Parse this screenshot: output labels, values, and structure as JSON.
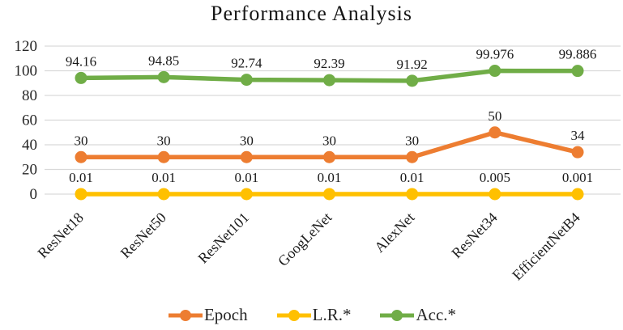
{
  "title": "Performance Analysis",
  "chart_data": {
    "type": "line",
    "title": "Performance Analysis",
    "categories": [
      "ResNet18",
      "ResNet50",
      "ResNet101",
      "GoogLeNet",
      "AlexNet",
      "ResNet34",
      "EfficientNetB4"
    ],
    "series": [
      {
        "name": "Epoch",
        "color": "#ED7D31",
        "values": [
          30,
          30,
          30,
          30,
          30,
          50,
          34
        ],
        "labels": [
          "30",
          "30",
          "30",
          "30",
          "30",
          "50",
          "34"
        ]
      },
      {
        "name": "L.R.*",
        "color": "#FFC000",
        "values": [
          0.01,
          0.01,
          0.01,
          0.01,
          0.01,
          0.005,
          0.001
        ],
        "labels": [
          "0.01",
          "0.01",
          "0.01",
          "0.01",
          "0.01",
          "0.005",
          "0.001"
        ]
      },
      {
        "name": "Acc.*",
        "color": "#70AD47",
        "values": [
          94.16,
          94.85,
          92.74,
          92.39,
          91.92,
          99.976,
          99.886
        ],
        "labels": [
          "94.16",
          "94.85",
          "92.74",
          "92.39",
          "91.92",
          "99.976",
          "99.886"
        ]
      }
    ],
    "ylim": [
      0,
      120
    ],
    "yticks": [
      0,
      20,
      40,
      60,
      80,
      100,
      120
    ],
    "grid": true,
    "legend_position": "bottom",
    "legend": [
      "Epoch",
      "L.R.*",
      "Acc.*"
    ],
    "colors": {
      "gridline": "#D9D9D9",
      "tick_text": "#262626",
      "label_text": "#1a1a1a"
    }
  }
}
